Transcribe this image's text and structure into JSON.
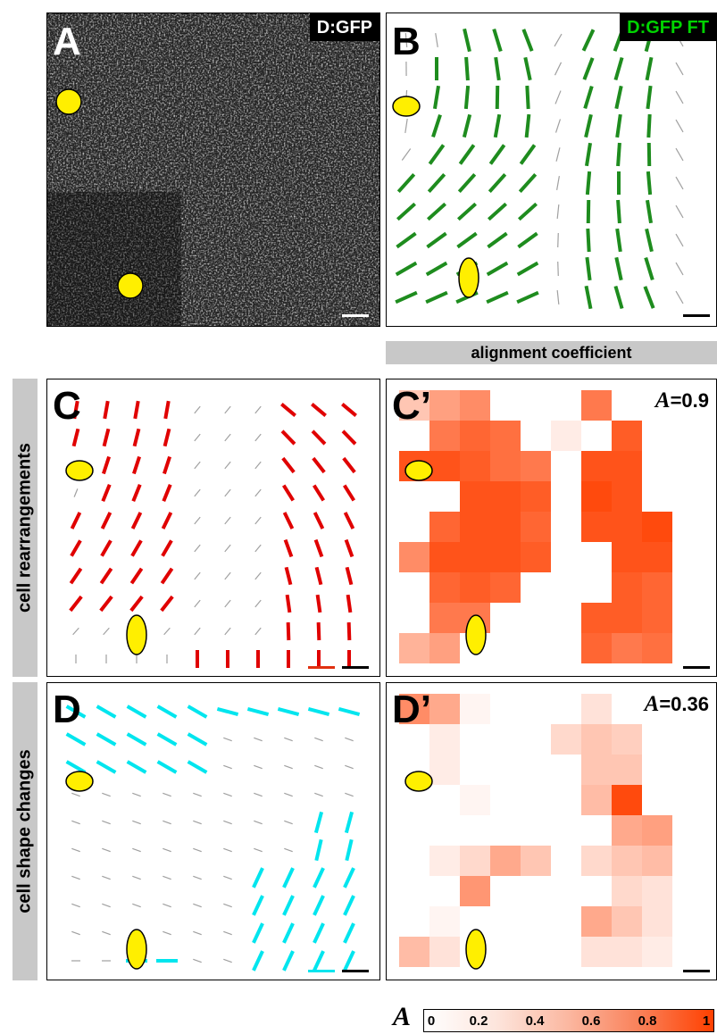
{
  "figure": {
    "panels": {
      "A": {
        "letter": "A",
        "tag": "D:GFP"
      },
      "B": {
        "letter": "B",
        "tag": "D:GFP FT"
      },
      "C": {
        "letter": "C"
      },
      "C_prime": {
        "letter": "C’",
        "alignment_symbol": "A",
        "alignment_value": "=0.9"
      },
      "D": {
        "letter": "D"
      },
      "D_prime": {
        "letter": "D’",
        "alignment_symbol": "A",
        "alignment_value": "=0.36"
      }
    },
    "header": "alignment coefficient",
    "row_labels": {
      "c": "cell rearrangements",
      "d": "cell shape changes"
    },
    "colorbar": {
      "symbol": "A",
      "ticks": [
        "0",
        "0.2",
        "0.4",
        "0.6",
        "0.8",
        "1"
      ]
    },
    "colors": {
      "fft_lines": "#1e8c1e",
      "rearrangement_lines": "#e00000",
      "shape_lines": "#00e5ee",
      "weak_lines": "#a0a0a0",
      "markers": "#ffef00",
      "heatmap_max": "#ff4000"
    }
  }
}
